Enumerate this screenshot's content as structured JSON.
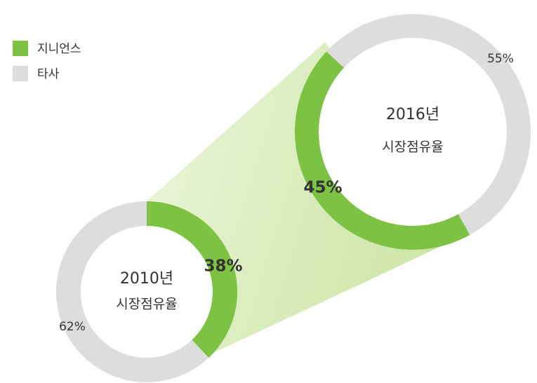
{
  "legend": {
    "labels": [
      "지니언스",
      "타사"
    ],
    "colors": [
      "#7dc242",
      "#dcdddf"
    ]
  },
  "chart_data": [
    {
      "type": "donut",
      "title": "2010년",
      "subtitle": "시장점유율",
      "values": [
        38,
        62
      ],
      "value_labels": [
        "38%",
        "62%"
      ]
    },
    {
      "type": "donut",
      "title": "2016년",
      "subtitle": "시장점유율",
      "values": [
        45,
        55
      ],
      "value_labels": [
        "45%",
        "55%"
      ]
    }
  ]
}
